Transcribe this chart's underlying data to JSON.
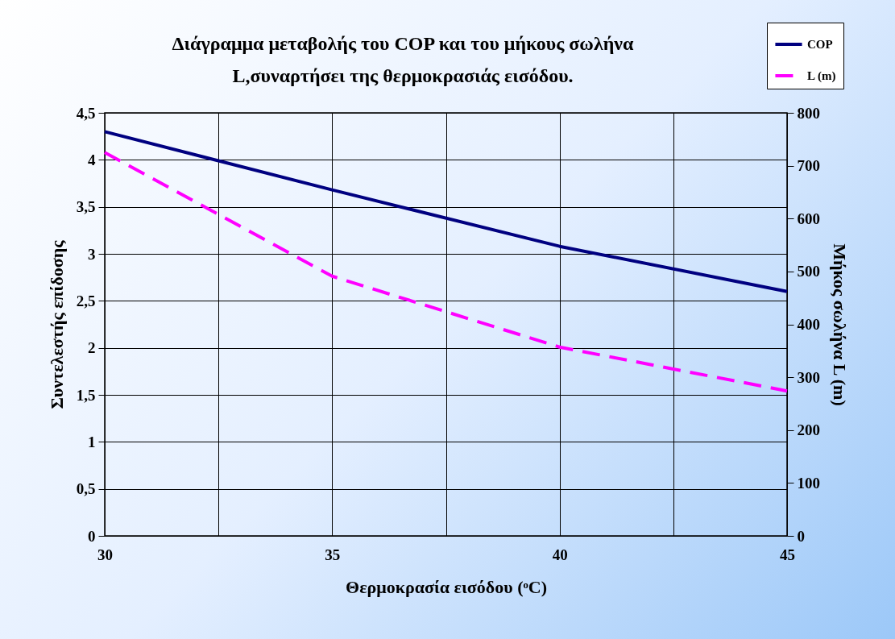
{
  "chart_data": {
    "type": "line",
    "title": [
      "Διάγραμμα μεταβολής του COP και του μήκους σωλήνα",
      "L,συναρτήσει της θερμοκρασιάς εισόδου."
    ],
    "xlabel": "Θερμοκρασία εισόδου (ᵒC)",
    "ylabel": "Συντελεστής επίδοσης",
    "y2label": "Μήκος σωλήνα L (m)",
    "x": [
      30,
      35,
      40,
      45
    ],
    "series": [
      {
        "name": "COP",
        "color": "#000080",
        "line_style": "solid",
        "values": [
          4.3,
          3.68,
          3.08,
          2.6
        ]
      },
      {
        "name": "L (m)",
        "color": "#ff00ff",
        "line_style": "dashed",
        "axis": "y2",
        "values": [
          725,
          491,
          357,
          274
        ]
      }
    ],
    "xlim": [
      30,
      45
    ],
    "xticks": [
      30,
      {
        "value": 32.5,
        "label": null
      },
      35,
      {
        "value": 37.5,
        "label": null
      },
      40,
      {
        "value": 42.5,
        "label": null
      },
      45
    ],
    "ylim": [
      0,
      4.5
    ],
    "yticks": [
      0,
      {
        "value": 0.5,
        "label": "0,5"
      },
      1,
      {
        "value": 1.5,
        "label": "1,5"
      },
      2,
      {
        "value": 2.5,
        "label": "2,5"
      },
      3,
      {
        "value": 3.5,
        "label": "3,5"
      },
      4,
      {
        "value": 4.5,
        "label": "4,5"
      }
    ],
    "y2lim": [
      0,
      800
    ],
    "y2ticks": [
      0,
      100,
      200,
      300,
      400,
      500,
      600,
      700,
      800
    ],
    "grid": true,
    "legend": "top right",
    "marker": "none"
  }
}
